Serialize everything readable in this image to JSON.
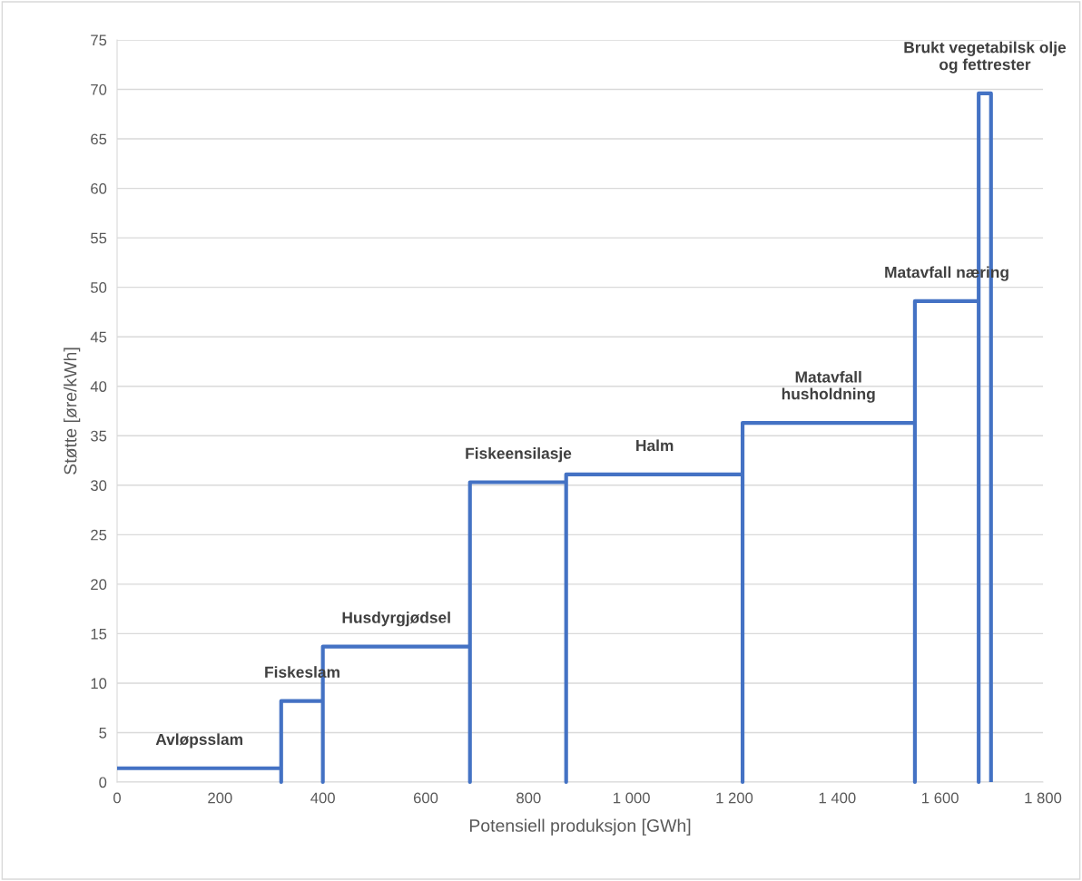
{
  "chart_data": {
    "type": "line",
    "xlabel": "Potensiell produksjon [GWh]",
    "ylabel": "Støtte [øre/kWh]",
    "x": [
      0,
      319,
      319,
      319,
      400,
      400,
      400,
      686,
      686,
      686,
      873,
      873,
      873,
      1216,
      1216,
      1216,
      1551,
      1551,
      1551,
      1675,
      1675,
      1675,
      1699,
      1699
    ],
    "series": [
      {
        "color": "#4472c4",
        "values": [
          1.4,
          1.4,
          0,
          8.2,
          8.2,
          0,
          13.7,
          13.7,
          0,
          30.3,
          30.3,
          0,
          31.1,
          31.1,
          0,
          36.3,
          36.3,
          0,
          48.6,
          48.6,
          0,
          69.6,
          69.6,
          0
        ]
      }
    ],
    "xlim": [
      0,
      1800
    ],
    "xticks": [
      0,
      200,
      400,
      600,
      800,
      {
        "value": 1000,
        "label": "1 000"
      },
      {
        "value": 1200,
        "label": "1 200"
      },
      {
        "value": 1400,
        "label": "1 400"
      },
      {
        "value": 1600,
        "label": "1 600"
      },
      {
        "value": 1800,
        "label": "1 800"
      }
    ],
    "ylim": [
      0,
      75
    ],
    "yticks": [
      0,
      5,
      10,
      15,
      20,
      25,
      30,
      35,
      40,
      45,
      50,
      55,
      60,
      65,
      70,
      75
    ],
    "grid": "y",
    "annotations": [
      {
        "text": "Avløpsslam",
        "x": 160,
        "y": 1.4
      },
      {
        "text": "Fiskeslam",
        "x": 360,
        "y": 8.2
      },
      {
        "text": "Husdyrgjødsel",
        "x": 543,
        "y": 13.7
      },
      {
        "text": "Fiskeensilasje",
        "x": 780,
        "y": 30.3
      },
      {
        "text": "Halm",
        "x": 1045,
        "y": 31.1
      },
      {
        "text": "Matavfall\nhusholdning",
        "x": 1383,
        "y": 36.3
      },
      {
        "text": "Matavfall næring",
        "x": 1613,
        "y": 48.6
      },
      {
        "text": "Brukt vegetabilsk olje\nog fettrester",
        "x": 1687,
        "y": 69.6
      }
    ]
  }
}
